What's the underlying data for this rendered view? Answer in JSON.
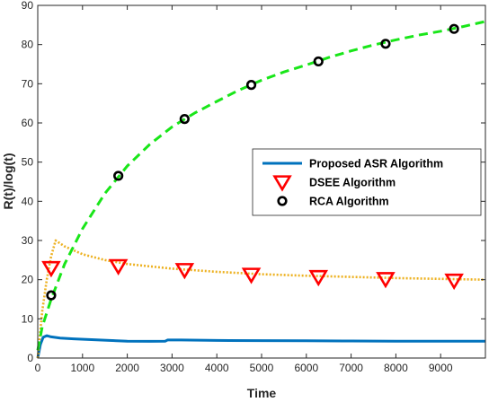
{
  "chart_data": {
    "type": "line",
    "xlabel": "Time",
    "ylabel": "R(t)/log(t)",
    "xlim": [
      0,
      10000
    ],
    "ylim": [
      0,
      90
    ],
    "x_ticks": [
      0,
      1000,
      2000,
      3000,
      4000,
      5000,
      6000,
      7000,
      8000,
      9000
    ],
    "x_tick_labels": [
      "0",
      "1000",
      "2000",
      "3000",
      "4000",
      "5000",
      "6000",
      "7000",
      "8000",
      "9000"
    ],
    "y_ticks": [
      0,
      10,
      20,
      30,
      40,
      50,
      60,
      70,
      80,
      90
    ],
    "y_tick_labels": [
      "0",
      "10",
      "20",
      "30",
      "40",
      "50",
      "60",
      "70",
      "80",
      "90"
    ],
    "grid": false,
    "legend_position": "center-right",
    "series": [
      {
        "name": "Proposed ASR Algorithm",
        "style": "solid",
        "color": "#0072BD",
        "x": [
          0,
          60,
          120,
          200,
          300,
          500,
          800,
          1200,
          1600,
          2000,
          2500,
          2850,
          2900,
          3200,
          4000,
          5000,
          6000,
          7000,
          8000,
          9000,
          10000
        ],
        "y": [
          0,
          3.5,
          5.3,
          5.7,
          5.4,
          5.1,
          4.9,
          4.7,
          4.5,
          4.3,
          4.25,
          4.3,
          4.6,
          4.6,
          4.5,
          4.45,
          4.4,
          4.35,
          4.3,
          4.3,
          4.3
        ]
      },
      {
        "name": "DSEE Algorithm",
        "style": "dotted",
        "color": "#EDB120",
        "marker": "triangle-down",
        "marker_color": "#FF0000",
        "x": [
          0,
          100,
          200,
          300,
          400,
          600,
          1000,
          1500,
          2000,
          3000,
          4000,
          5000,
          6000,
          7000,
          8000,
          9000,
          10000
        ],
        "y": [
          0,
          12,
          20,
          26,
          30,
          28.5,
          26.5,
          25,
          24,
          22.8,
          22,
          21.4,
          21,
          20.7,
          20.4,
          20.2,
          20
        ],
        "marker_points": [
          {
            "x": 300,
            "y": 23
          },
          {
            "x": 1800,
            "y": 23.5
          },
          {
            "x": 3280,
            "y": 22.5
          },
          {
            "x": 4770,
            "y": 21.3
          },
          {
            "x": 6270,
            "y": 20.7
          },
          {
            "x": 7770,
            "y": 20.2
          },
          {
            "x": 9300,
            "y": 19.8
          }
        ]
      },
      {
        "name": "RCA Algorithm",
        "style": "dashed",
        "color": "#19E619",
        "marker": "circle",
        "marker_color": "#000000",
        "x": [
          0,
          100,
          300,
          600,
          1000,
          1500,
          2000,
          2500,
          3000,
          3500,
          4000,
          4500,
          5000,
          5500,
          6000,
          6500,
          7000,
          7500,
          8000,
          8500,
          9000,
          9500,
          10000
        ],
        "y": [
          2,
          8,
          15,
          24,
          33,
          42,
          49,
          54.5,
          59,
          62.5,
          65.5,
          68.4,
          70.9,
          73,
          74.8,
          76.7,
          78.4,
          79.9,
          81.2,
          82.4,
          83.4,
          84.6,
          85.9
        ],
        "marker_points": [
          {
            "x": 300,
            "y": 16
          },
          {
            "x": 1800,
            "y": 46.5
          },
          {
            "x": 3280,
            "y": 61
          },
          {
            "x": 4770,
            "y": 69.7
          },
          {
            "x": 6270,
            "y": 75.7
          },
          {
            "x": 7770,
            "y": 80.2
          },
          {
            "x": 9300,
            "y": 84
          }
        ]
      }
    ]
  }
}
